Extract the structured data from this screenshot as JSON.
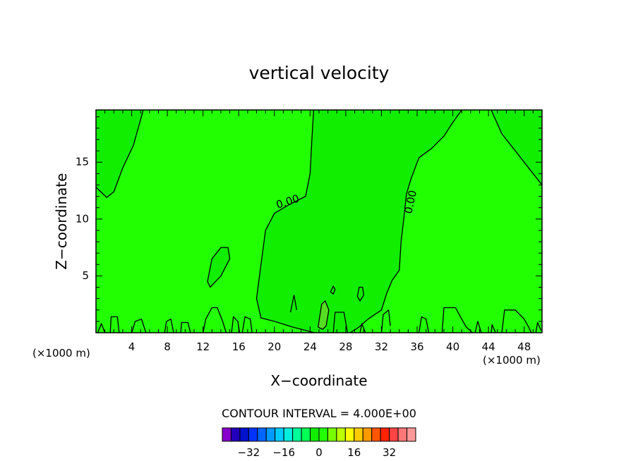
{
  "chart_data": {
    "type": "contour",
    "title": "vertical velocity",
    "xlabel": "X−coordinate",
    "ylabel": "Z−coordinate",
    "x_unit_left": "(×1000 m)",
    "x_unit_right": "(×1000 m)",
    "xlim": [
      0,
      50
    ],
    "ylim": [
      0,
      19.6
    ],
    "xticks": [
      4,
      8,
      12,
      16,
      20,
      24,
      28,
      32,
      36,
      40,
      44,
      48
    ],
    "yticks": [
      5,
      10,
      15
    ],
    "background_color": "#22ff00",
    "fields": [
      {
        "name": "left-positive-region",
        "color": "#11ee00",
        "points": [
          [
            0,
            19.6
          ],
          [
            5.3,
            19.6
          ],
          [
            4.2,
            16.5
          ],
          [
            3,
            14.5
          ],
          [
            2,
            12.4
          ],
          [
            1.2,
            11.9
          ],
          [
            0,
            12.8
          ]
        ]
      },
      {
        "name": "central-positive-region",
        "color": "#11ee00",
        "points": [
          [
            24.4,
            19.6
          ],
          [
            41,
            19.6
          ],
          [
            40,
            18.5
          ],
          [
            39,
            17.3
          ],
          [
            37.6,
            16.2
          ],
          [
            36.2,
            15.4
          ],
          [
            35.3,
            13.5
          ],
          [
            34.8,
            12.2
          ],
          [
            34.5,
            10
          ],
          [
            34.2,
            8
          ],
          [
            34,
            5.5
          ],
          [
            33.2,
            4.6
          ],
          [
            32.6,
            3.5
          ],
          [
            32,
            2
          ],
          [
            30.5,
            1.2
          ],
          [
            29.5,
            0.5
          ],
          [
            28.5,
            0
          ],
          [
            24.5,
            0
          ],
          [
            22,
            0.5
          ],
          [
            20,
            1
          ],
          [
            18.5,
            1.3
          ],
          [
            18,
            3
          ],
          [
            18.5,
            6
          ],
          [
            19,
            9
          ],
          [
            20,
            10.5
          ],
          [
            21.5,
            11.2
          ],
          [
            23.5,
            12
          ],
          [
            24,
            14
          ],
          [
            24.2,
            17
          ]
        ]
      },
      {
        "name": "right-positive-region",
        "color": "#11ee00",
        "points": [
          [
            44.3,
            19.6
          ],
          [
            50,
            19.6
          ],
          [
            50,
            13
          ],
          [
            48.5,
            14.5
          ],
          [
            47,
            16
          ],
          [
            45.5,
            17.5
          ]
        ]
      },
      {
        "name": "ellipse-positive-region",
        "color": "#11ee00",
        "points": [
          [
            12.5,
            4.5
          ],
          [
            13,
            6.5
          ],
          [
            14,
            7.5
          ],
          [
            14.8,
            7.5
          ],
          [
            15,
            6.5
          ],
          [
            14,
            5
          ],
          [
            12.8,
            4
          ]
        ]
      },
      {
        "name": "small-updraft-region",
        "color": "#55dd22",
        "points": [
          [
            24.9,
            0.5
          ],
          [
            25.3,
            2.5
          ],
          [
            25.7,
            2.8
          ],
          [
            26.1,
            2
          ],
          [
            25.8,
            0.6
          ],
          [
            25.4,
            0.3
          ]
        ]
      }
    ],
    "contour_lines": [
      {
        "label": "0.00",
        "label_at": [
          21.5,
          11.5
        ],
        "label_rotation": -18,
        "points": [
          [
            24.4,
            19.6
          ],
          [
            24.2,
            17
          ],
          [
            24,
            14
          ],
          [
            23.5,
            12
          ],
          [
            21.5,
            11.2
          ],
          [
            20,
            10.5
          ],
          [
            19,
            9
          ],
          [
            18.5,
            6
          ],
          [
            18,
            3
          ],
          [
            18.5,
            1.3
          ],
          [
            20,
            1
          ],
          [
            22,
            0.5
          ],
          [
            24.5,
            0
          ]
        ]
      },
      {
        "label": "0.00",
        "label_at": [
          35.3,
          11.5
        ],
        "label_rotation": -78,
        "points": [
          [
            41,
            19.6
          ],
          [
            40,
            18.5
          ],
          [
            39,
            17.3
          ],
          [
            37.6,
            16.2
          ],
          [
            36.2,
            15.4
          ],
          [
            35.3,
            13.5
          ],
          [
            34.8,
            12.2
          ],
          [
            34.5,
            10
          ],
          [
            34.2,
            8
          ],
          [
            34,
            5.5
          ],
          [
            33.2,
            4.6
          ],
          [
            32.6,
            3.5
          ],
          [
            32,
            2
          ],
          [
            30.5,
            1.2
          ],
          [
            29.5,
            0.5
          ],
          [
            28.5,
            0
          ]
        ]
      },
      {
        "label": "",
        "points": [
          [
            5.3,
            19.6
          ],
          [
            4.2,
            16.5
          ],
          [
            3,
            14.5
          ],
          [
            2,
            12.4
          ],
          [
            1.2,
            11.9
          ],
          [
            0,
            12.8
          ]
        ]
      },
      {
        "label": "",
        "points": [
          [
            44.3,
            19.6
          ],
          [
            45.5,
            17.5
          ],
          [
            47,
            16
          ],
          [
            48.5,
            14.5
          ],
          [
            50,
            13
          ]
        ]
      },
      {
        "label": "",
        "closed": true,
        "points": [
          [
            12.5,
            4.5
          ],
          [
            13,
            6.5
          ],
          [
            14,
            7.5
          ],
          [
            14.8,
            7.5
          ],
          [
            15,
            6.5
          ],
          [
            14,
            5
          ],
          [
            12.8,
            4
          ]
        ]
      },
      {
        "label": "",
        "closed": true,
        "points": [
          [
            29.3,
            3.2
          ],
          [
            29.5,
            4
          ],
          [
            29.9,
            4
          ],
          [
            30,
            3.3
          ],
          [
            29.6,
            2.8
          ]
        ]
      },
      {
        "label": "",
        "closed": true,
        "points": [
          [
            24.9,
            0.5
          ],
          [
            25.3,
            2.5
          ],
          [
            25.7,
            2.8
          ],
          [
            26.1,
            2
          ],
          [
            25.8,
            0.6
          ],
          [
            25.4,
            0.3
          ]
        ]
      },
      {
        "label": "",
        "closed": true,
        "points": [
          [
            26.3,
            3.6
          ],
          [
            26.6,
            4.1
          ],
          [
            26.8,
            3.8
          ],
          [
            26.6,
            3.4
          ]
        ]
      },
      {
        "label": "",
        "points": [
          [
            12,
            0
          ],
          [
            12.3,
            1.2
          ],
          [
            13,
            2.2
          ],
          [
            13.6,
            2.2
          ],
          [
            14.2,
            1
          ],
          [
            14.6,
            0
          ]
        ]
      },
      {
        "label": "",
        "points": [
          [
            36.2,
            0
          ],
          [
            36.5,
            1.4
          ],
          [
            37,
            1.2
          ],
          [
            37.3,
            0
          ]
        ]
      },
      {
        "label": "",
        "points": [
          [
            38.8,
            0
          ],
          [
            39,
            2.2
          ],
          [
            40.3,
            2.2
          ],
          [
            41,
            1.2
          ],
          [
            41.5,
            0.5
          ],
          [
            42.2,
            0
          ]
        ]
      },
      {
        "label": "",
        "points": [
          [
            45.5,
            0
          ],
          [
            45.8,
            2
          ],
          [
            47,
            2
          ],
          [
            48,
            1.2
          ],
          [
            48.5,
            0.5
          ],
          [
            48.8,
            0
          ]
        ]
      },
      {
        "label": "",
        "points": [
          [
            32,
            0
          ],
          [
            32.2,
            1.6
          ],
          [
            32.8,
            2
          ],
          [
            33,
            0.6
          ]
        ]
      },
      {
        "label": "",
        "points": [
          [
            0.2,
            0
          ],
          [
            0.6,
            0.8
          ],
          [
            1,
            0
          ]
        ]
      },
      {
        "label": "",
        "points": [
          [
            1.6,
            0
          ],
          [
            1.7,
            1.4
          ],
          [
            2.4,
            1.4
          ],
          [
            2.6,
            0
          ]
        ]
      },
      {
        "label": "",
        "points": [
          [
            4,
            0
          ],
          [
            4.4,
            1
          ],
          [
            5.1,
            1.2
          ],
          [
            5.6,
            0
          ]
        ]
      },
      {
        "label": "",
        "points": [
          [
            7.7,
            0
          ],
          [
            7.9,
            1
          ],
          [
            8.4,
            1.2
          ],
          [
            8.7,
            0
          ]
        ]
      },
      {
        "label": "",
        "points": [
          [
            9.5,
            0
          ],
          [
            9.6,
            0.9
          ],
          [
            10.3,
            0.9
          ],
          [
            10.6,
            0
          ]
        ]
      },
      {
        "label": "",
        "points": [
          [
            15.2,
            0
          ],
          [
            15.4,
            1.4
          ],
          [
            15.9,
            1
          ],
          [
            16.1,
            0
          ]
        ]
      },
      {
        "label": "",
        "points": [
          [
            16.4,
            0
          ],
          [
            16.7,
            1.4
          ],
          [
            17.3,
            1.2
          ],
          [
            17.5,
            0
          ]
        ]
      },
      {
        "label": "",
        "points": [
          [
            21.8,
            1.8
          ],
          [
            22.2,
            3.3
          ],
          [
            22.5,
            2
          ]
        ]
      },
      {
        "label": "",
        "points": [
          [
            26.6,
            0
          ],
          [
            26.8,
            1.8
          ],
          [
            27.8,
            1.8
          ],
          [
            28.2,
            0
          ]
        ]
      },
      {
        "label": "",
        "points": [
          [
            29.6,
            0
          ],
          [
            29.8,
            0.8
          ],
          [
            30.2,
            0
          ]
        ]
      },
      {
        "label": "",
        "points": [
          [
            42.5,
            0
          ],
          [
            42.8,
            1
          ],
          [
            43.2,
            0
          ]
        ]
      },
      {
        "label": "",
        "points": [
          [
            44.3,
            0
          ],
          [
            44.4,
            0.7
          ],
          [
            44.8,
            0
          ]
        ]
      },
      {
        "label": "",
        "points": [
          [
            49.3,
            0
          ],
          [
            49.5,
            0.9
          ],
          [
            49.9,
            0.2
          ]
        ]
      }
    ],
    "footer": "CONTOUR INTERVAL = 4.000E+00",
    "colorbar": {
      "colors": [
        "#8800cc",
        "#2200bb",
        "#0011cc",
        "#0033ff",
        "#0066ff",
        "#0099ff",
        "#00ccff",
        "#00eedd",
        "#00ff99",
        "#00ff55",
        "#11ee00",
        "#22ff00",
        "#77ff00",
        "#bbff00",
        "#ffff00",
        "#ffcc00",
        "#ff9900",
        "#ff5500",
        "#ff2200",
        "#ff4444",
        "#ff7777",
        "#ff9999"
      ],
      "tick_labels": [
        "−32",
        "−16",
        "0",
        "16",
        "32"
      ],
      "tick_values": [
        -32,
        -16,
        0,
        16,
        32
      ],
      "vmin": -44,
      "vmax": 44
    }
  }
}
